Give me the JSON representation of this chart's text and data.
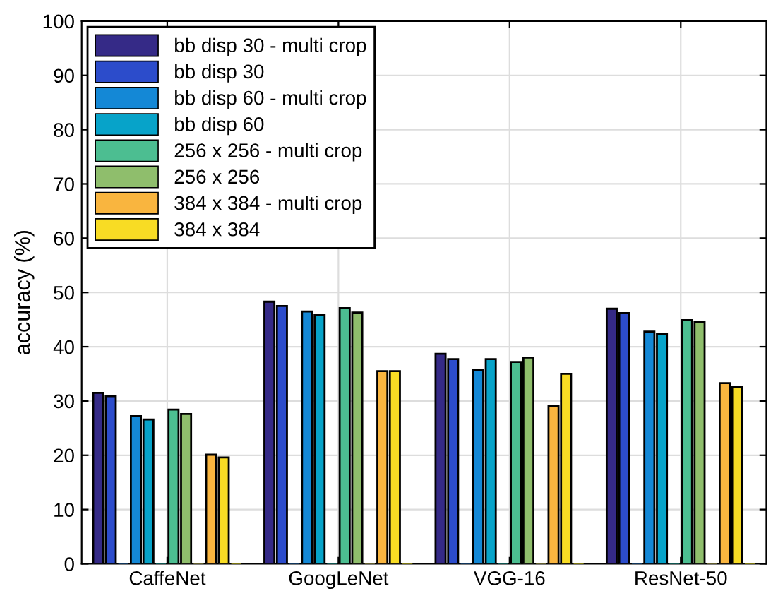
{
  "chart_data": {
    "type": "bar",
    "ylabel": "accuracy (%)",
    "categories": [
      "CaffeNet",
      "GoogLeNet",
      "VGG-16",
      "ResNet-50"
    ],
    "series": [
      {
        "name": "bb disp 30 - multi crop",
        "color": "#352a87",
        "values": [
          31.5,
          48.3,
          38.7,
          47.0
        ]
      },
      {
        "name": "bb disp 30",
        "color": "#2c4ccb",
        "values": [
          30.9,
          47.5,
          37.7,
          46.2
        ]
      },
      {
        "color": "#1c6bb8",
        "values": [
          0,
          0,
          0,
          0
        ]
      },
      {
        "name": "bb disp 60 - multi crop",
        "color": "#1488d6",
        "values": [
          27.2,
          46.5,
          35.7,
          42.8
        ]
      },
      {
        "name": "bb disp 60",
        "color": "#07a3c9",
        "values": [
          26.6,
          45.8,
          37.7,
          42.3
        ]
      },
      {
        "color": "#1ba9a0",
        "values": [
          0,
          0,
          0,
          0
        ]
      },
      {
        "name": "256 x 256 - multi crop",
        "color": "#4cbe91",
        "values": [
          28.4,
          47.1,
          37.2,
          44.9
        ]
      },
      {
        "name": "256 x 256",
        "color": "#8fbe6c",
        "values": [
          27.6,
          46.3,
          38.0,
          44.5
        ]
      },
      {
        "color": "#c4bb5a",
        "values": [
          0,
          0,
          0,
          0
        ]
      },
      {
        "name": "384 x 384 - multi crop",
        "color": "#f9b53f",
        "values": [
          20.1,
          35.5,
          29.1,
          33.3
        ]
      },
      {
        "name": "384 x 384",
        "color": "#f8dc24",
        "values": [
          19.6,
          35.5,
          35.0,
          32.6
        ]
      },
      {
        "color": "#f5e91c",
        "values": [
          0,
          0,
          0,
          0
        ]
      }
    ],
    "ylim": [
      0,
      100
    ],
    "yticks": [
      0,
      10,
      20,
      30,
      40,
      50,
      60,
      70,
      80,
      90,
      100
    ],
    "grid": true,
    "legend": "top left"
  }
}
